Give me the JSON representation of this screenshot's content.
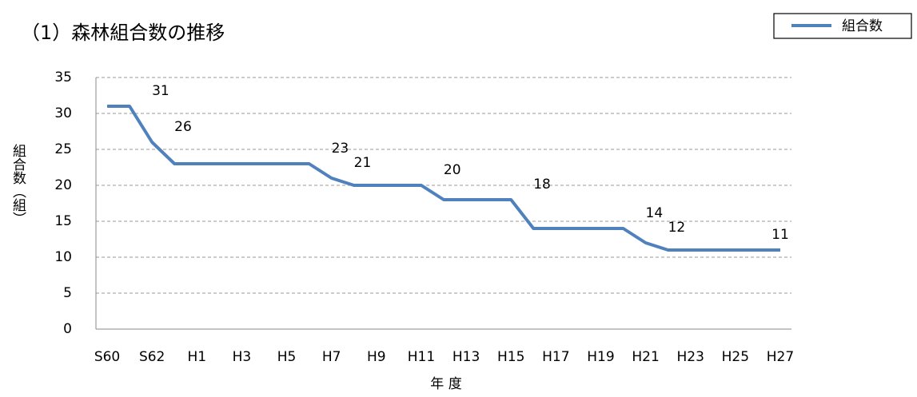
{
  "chart_data": {
    "type": "line",
    "title": "（1）森林組合数の推移",
    "x_label": "年 度",
    "y_label": "組合数（組）",
    "categories": [
      "S60",
      null,
      "S62",
      null,
      "H1",
      null,
      "H3",
      null,
      "H5",
      null,
      "H7",
      null,
      "H9",
      null,
      "H11",
      null,
      "H13",
      null,
      "H15",
      null,
      "H17",
      null,
      "H19",
      null,
      "H21",
      null,
      "H23",
      null,
      "H25",
      null,
      "H27"
    ],
    "series": [
      {
        "name": "組合数",
        "color": "#4f81bd",
        "values": [
          31,
          31,
          26,
          23,
          23,
          23,
          23,
          23,
          23,
          23,
          21,
          20,
          20,
          20,
          20,
          18,
          18,
          18,
          18,
          14,
          14,
          14,
          14,
          14,
          12,
          11,
          11,
          11,
          11,
          11,
          11
        ],
        "value_labels": [
          null,
          "31",
          "26",
          null,
          null,
          null,
          null,
          null,
          null,
          "23",
          "21",
          null,
          null,
          null,
          "20",
          null,
          null,
          null,
          "18",
          null,
          null,
          null,
          null,
          "14",
          "12",
          null,
          null,
          null,
          null,
          null,
          "11"
        ]
      }
    ],
    "ylim": [
      0,
      35
    ],
    "yticks": [
      0,
      5,
      10,
      15,
      20,
      25,
      30,
      35
    ],
    "grid": true,
    "legend": "top-right"
  }
}
